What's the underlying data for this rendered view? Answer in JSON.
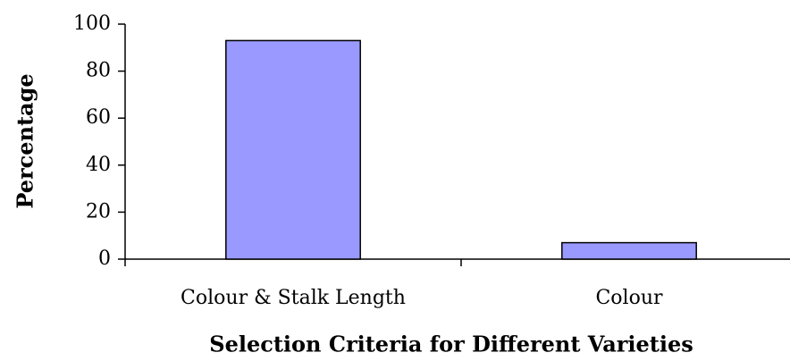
{
  "chart_data": {
    "type": "bar",
    "categories": [
      "Colour & Stalk Length",
      "Colour"
    ],
    "values": [
      93,
      7
    ],
    "color": "#9999ff",
    "ylim": [
      0,
      100
    ],
    "yticks": [
      0,
      20,
      40,
      60,
      80,
      100
    ],
    "grid": false,
    "ylabel": "Percentage",
    "xlabel": "Selection Criteria for Different Varieties"
  }
}
